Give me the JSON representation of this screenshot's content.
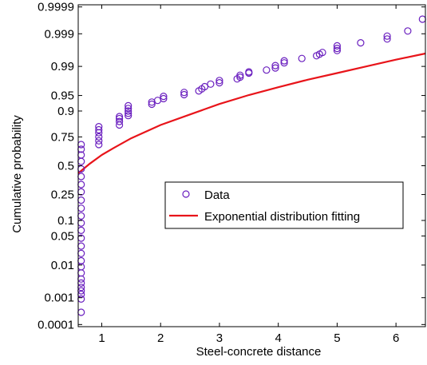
{
  "chart_data": {
    "type": "scatter",
    "title": "",
    "xlabel": "Steel-concrete distance",
    "ylabel": "Cumulative probability",
    "xlim": [
      0.6,
      6.5
    ],
    "ylim": [
      0.0001,
      0.9999
    ],
    "y_scale": "probability (normal quantile)",
    "grid": false,
    "legend_position": "center-right",
    "x_ticks": [
      {
        "value": 1,
        "label": "1"
      },
      {
        "value": 2,
        "label": "2"
      },
      {
        "value": 3,
        "label": "3"
      },
      {
        "value": 4,
        "label": "4"
      },
      {
        "value": 5,
        "label": "5"
      },
      {
        "value": 6,
        "label": "6"
      }
    ],
    "y_ticks": [
      {
        "value": 0.9999,
        "label": "0.9999"
      },
      {
        "value": 0.999,
        "label": "0.999"
      },
      {
        "value": 0.99,
        "label": "0.99"
      },
      {
        "value": 0.95,
        "label": "0.95"
      },
      {
        "value": 0.9,
        "label": "0.9"
      },
      {
        "value": 0.75,
        "label": "0.75"
      },
      {
        "value": 0.5,
        "label": "0.5"
      },
      {
        "value": 0.25,
        "label": "0.25"
      },
      {
        "value": 0.1,
        "label": "0.1"
      },
      {
        "value": 0.05,
        "label": "0.05"
      },
      {
        "value": 0.01,
        "label": "0.01"
      },
      {
        "value": 0.001,
        "label": "0.001"
      },
      {
        "value": 0.0001,
        "label": "0.0001"
      }
    ],
    "series": [
      {
        "name": "Data",
        "kind": "scatter",
        "marker": "circle-open",
        "color": "#6a1fbf",
        "points": [
          [
            0.65,
            0.0003
          ],
          [
            0.65,
            0.0009
          ],
          [
            0.65,
            0.0013
          ],
          [
            0.65,
            0.0017
          ],
          [
            0.65,
            0.0022
          ],
          [
            0.65,
            0.003
          ],
          [
            0.65,
            0.004
          ],
          [
            0.65,
            0.006
          ],
          [
            0.65,
            0.009
          ],
          [
            0.65,
            0.013
          ],
          [
            0.65,
            0.02
          ],
          [
            0.65,
            0.03
          ],
          [
            0.65,
            0.045
          ],
          [
            0.65,
            0.065
          ],
          [
            0.65,
            0.09
          ],
          [
            0.65,
            0.12
          ],
          [
            0.65,
            0.16
          ],
          [
            0.65,
            0.21
          ],
          [
            0.65,
            0.27
          ],
          [
            0.65,
            0.33
          ],
          [
            0.65,
            0.4
          ],
          [
            0.65,
            0.47
          ],
          [
            0.65,
            0.54
          ],
          [
            0.65,
            0.6
          ],
          [
            0.65,
            0.65
          ],
          [
            0.65,
            0.69
          ],
          [
            0.95,
            0.69
          ],
          [
            0.95,
            0.72
          ],
          [
            0.95,
            0.75
          ],
          [
            0.95,
            0.78
          ],
          [
            0.95,
            0.8
          ],
          [
            0.95,
            0.82
          ],
          [
            1.3,
            0.83
          ],
          [
            1.3,
            0.85
          ],
          [
            1.3,
            0.865
          ],
          [
            1.3,
            0.875
          ],
          [
            1.45,
            0.88
          ],
          [
            1.45,
            0.89
          ],
          [
            1.45,
            0.9
          ],
          [
            1.45,
            0.91
          ],
          [
            1.45,
            0.92
          ],
          [
            1.85,
            0.925
          ],
          [
            1.85,
            0.932
          ],
          [
            1.95,
            0.937
          ],
          [
            2.05,
            0.942
          ],
          [
            2.05,
            0.948
          ],
          [
            2.4,
            0.952
          ],
          [
            2.4,
            0.957
          ],
          [
            2.65,
            0.96
          ],
          [
            2.7,
            0.964
          ],
          [
            2.75,
            0.968
          ],
          [
            2.85,
            0.972
          ],
          [
            3.0,
            0.974
          ],
          [
            3.0,
            0.977
          ],
          [
            3.3,
            0.979
          ],
          [
            3.35,
            0.981
          ],
          [
            3.35,
            0.983
          ],
          [
            3.5,
            0.985
          ],
          [
            3.5,
            0.986
          ],
          [
            3.8,
            0.9875
          ],
          [
            3.95,
            0.989
          ],
          [
            3.95,
            0.9905
          ],
          [
            4.1,
            0.992
          ],
          [
            4.1,
            0.993
          ],
          [
            4.4,
            0.994
          ],
          [
            4.65,
            0.995
          ],
          [
            4.7,
            0.9955
          ],
          [
            4.75,
            0.996
          ],
          [
            5.0,
            0.9965
          ],
          [
            5.0,
            0.997
          ],
          [
            5.0,
            0.9975
          ],
          [
            5.4,
            0.998
          ],
          [
            5.85,
            0.9985
          ],
          [
            5.85,
            0.9988
          ],
          [
            6.2,
            0.9992
          ],
          [
            6.45,
            0.9997
          ]
        ]
      },
      {
        "name": "Exponential distribution fitting",
        "kind": "line",
        "color": "#e8141a",
        "x": [
          0.6,
          0.8,
          1.0,
          1.2,
          1.5,
          2.0,
          2.5,
          3.0,
          3.5,
          4.0,
          4.5,
          5.0,
          5.5,
          6.0,
          6.5
        ],
        "values": [
          0.43,
          0.52,
          0.6,
          0.66,
          0.74,
          0.83,
          0.885,
          0.926,
          0.951,
          0.967,
          0.978,
          0.985,
          0.99,
          0.9935,
          0.9957
        ]
      }
    ]
  }
}
